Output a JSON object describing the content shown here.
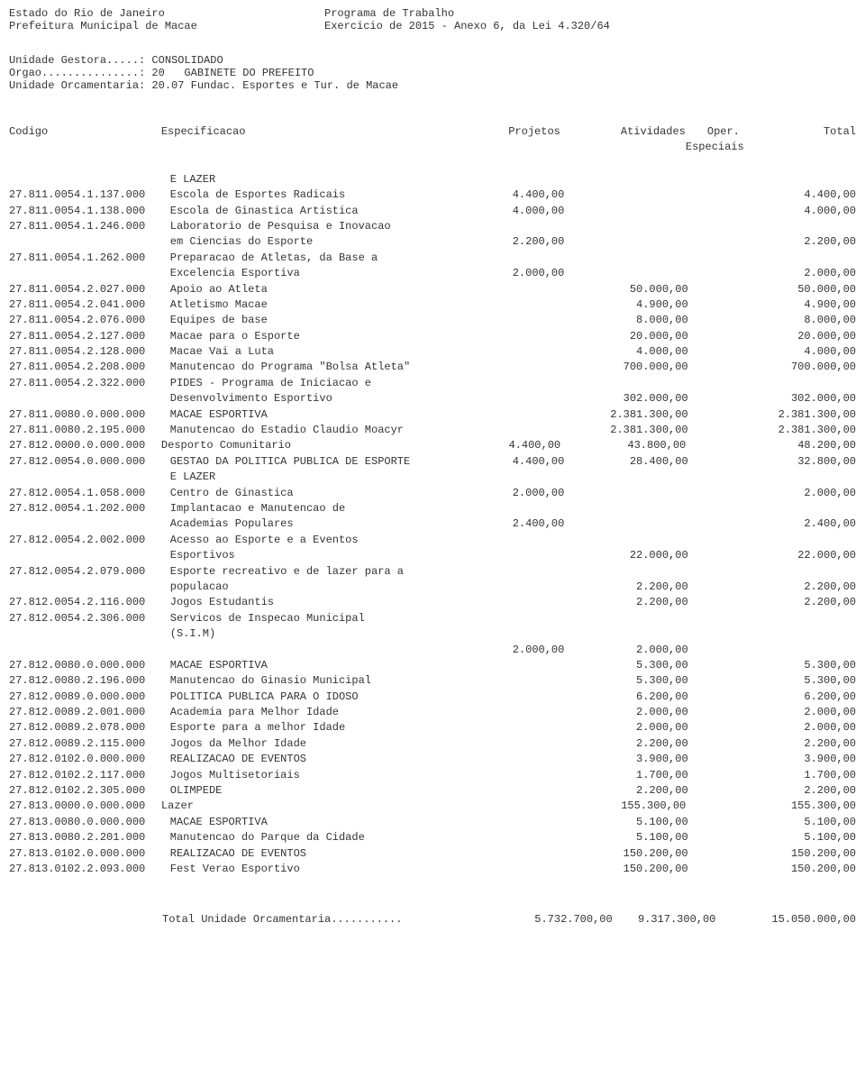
{
  "header": {
    "left1": "Estado do Rio de Janeiro",
    "right1": "Programa de Trabalho",
    "left2": "Prefeitura Municipal de Macae",
    "right2": "Exercicio de 2015 - Anexo 6, da Lei 4.320/64"
  },
  "meta": {
    "l1": "Unidade Gestora.....: CONSOLIDADO",
    "l2": "Orgao...............: 20   GABINETE DO PREFEITO",
    "l3": "Unidade Orcamentaria: 20.07 Fundac. Esportes e Tur. de Macae"
  },
  "colHeaders": {
    "code": "Codigo",
    "desc": "Especificacao",
    "proj": "Projetos",
    "act": "Atividades",
    "oper": "Oper. Especiais",
    "total": "Total"
  },
  "rows": [
    {
      "code": "",
      "desc": "E LAZER",
      "indent": 1
    },
    {
      "code": "27.811.0054.1.137.000",
      "desc": "Escola de Esportes Radicais",
      "indent": 1,
      "proj": "4.400,00",
      "total": "4.400,00"
    },
    {
      "code": "27.811.0054.1.138.000",
      "desc": "Escola de Ginastica Artistica",
      "indent": 1,
      "proj": "4.000,00",
      "total": "4.000,00"
    },
    {
      "code": "27.811.0054.1.246.000",
      "desc": "Laboratorio de Pesquisa e Inovacao",
      "indent": 1
    },
    {
      "code": "",
      "desc": "em Ciencias do Esporte",
      "indent": 1,
      "proj": "2.200,00",
      "total": "2.200,00"
    },
    {
      "code": "27.811.0054.1.262.000",
      "desc": "Preparacao de Atletas, da Base a",
      "indent": 1
    },
    {
      "code": "",
      "desc": "Excelencia Esportiva",
      "indent": 1,
      "proj": "2.000,00",
      "total": "2.000,00"
    },
    {
      "code": "27.811.0054.2.027.000",
      "desc": "Apoio ao Atleta",
      "indent": 1,
      "act": "50.000,00",
      "total": "50.000,00"
    },
    {
      "code": "27.811.0054.2.041.000",
      "desc": "Atletismo Macae",
      "indent": 1,
      "act": "4.900,00",
      "total": "4.900,00"
    },
    {
      "code": "27.811.0054.2.076.000",
      "desc": "Equipes de base",
      "indent": 1,
      "act": "8.000,00",
      "total": "8.000,00"
    },
    {
      "code": "27.811.0054.2.127.000",
      "desc": "Macae para o Esporte",
      "indent": 1,
      "act": "20.000,00",
      "total": "20.000,00"
    },
    {
      "code": "27.811.0054.2.128.000",
      "desc": "Macae Vai a Luta",
      "indent": 1,
      "act": "4.000,00",
      "total": "4.000,00"
    },
    {
      "code": "27.811.0054.2.208.000",
      "desc": "Manutencao do Programa \"Bolsa Atleta\"",
      "indent": 1,
      "act": "700.000,00",
      "total": "700.000,00"
    },
    {
      "code": "27.811.0054.2.322.000",
      "desc": "PIDES - Programa de Iniciacao e",
      "indent": 1
    },
    {
      "code": "",
      "desc": "Desenvolvimento Esportivo",
      "indent": 1,
      "act": "302.000,00",
      "total": "302.000,00"
    },
    {
      "code": "27.811.0080.0.000.000",
      "desc": "MACAE ESPORTIVA",
      "indent": 1,
      "act": "2.381.300,00",
      "total": "2.381.300,00"
    },
    {
      "code": "27.811.0080.2.195.000",
      "desc": "Manutencao do Estadio Claudio Moacyr",
      "indent": 1,
      "act": "2.381.300,00",
      "total": "2.381.300,00"
    },
    {
      "code": "27.812.0000.0.000.000",
      "desc": "Desporto Comunitario",
      "indent": 0,
      "proj": "4.400,00",
      "act": "43.800,00",
      "total": "48.200,00"
    },
    {
      "code": "27.812.0054.0.000.000",
      "desc": "GESTAO  DA POLITICA PUBLICA DE ESPORTE",
      "indent": 1,
      "proj": "4.400,00",
      "act": "28.400,00",
      "total": "32.800,00"
    },
    {
      "code": "",
      "desc": "E LAZER",
      "indent": 1
    },
    {
      "code": "27.812.0054.1.058.000",
      "desc": "Centro de Ginastica",
      "indent": 1,
      "proj": "2.000,00",
      "total": "2.000,00"
    },
    {
      "code": "27.812.0054.1.202.000",
      "desc": "Implantacao e Manutencao de",
      "indent": 1
    },
    {
      "code": "",
      "desc": "Academias Populares",
      "indent": 1,
      "proj": "2.400,00",
      "total": "2.400,00"
    },
    {
      "code": "27.812.0054.2.002.000",
      "desc": "Acesso ao Esporte e a Eventos",
      "indent": 1
    },
    {
      "code": "",
      "desc": "Esportivos",
      "indent": 1,
      "act": "22.000,00",
      "total": "22.000,00"
    },
    {
      "code": "27.812.0054.2.079.000",
      "desc": "Esporte recreativo e de lazer para a",
      "indent": 1
    },
    {
      "code": "",
      "desc": "populacao",
      "indent": 1,
      "act": "2.200,00",
      "total": "2.200,00"
    },
    {
      "code": "27.812.0054.2.116.000",
      "desc": "Jogos Estudantis",
      "indent": 1,
      "act": "2.200,00",
      "total": "2.200,00"
    },
    {
      "code": "27.812.0054.2.306.000",
      "desc": "Servicos de Inspecao Municipal",
      "indent": 1
    },
    {
      "code": "",
      "desc": "(S.I.M)",
      "indent": 1
    },
    {
      "code": "",
      "desc": "",
      "indent": 1,
      "proj": "2.000,00",
      "act": "2.000,00"
    },
    {
      "code": "27.812.0080.0.000.000",
      "desc": "MACAE ESPORTIVA",
      "indent": 1,
      "act": "5.300,00",
      "total": "5.300,00"
    },
    {
      "code": "27.812.0080.2.196.000",
      "desc": "Manutencao do Ginasio Municipal",
      "indent": 1,
      "act": "5.300,00",
      "total": "5.300,00"
    },
    {
      "code": "27.812.0089.0.000.000",
      "desc": "POLITICA PUBLICA PARA O IDOSO",
      "indent": 1,
      "act": "6.200,00",
      "total": "6.200,00"
    },
    {
      "code": "27.812.0089.2.001.000",
      "desc": "Academia para Melhor Idade",
      "indent": 1,
      "act": "2.000,00",
      "total": "2.000,00"
    },
    {
      "code": "27.812.0089.2.078.000",
      "desc": "Esporte para a melhor Idade",
      "indent": 1,
      "act": "2.000,00",
      "total": "2.000,00"
    },
    {
      "code": "27.812.0089.2.115.000",
      "desc": "Jogos da Melhor Idade",
      "indent": 1,
      "act": "2.200,00",
      "total": "2.200,00"
    },
    {
      "code": "27.812.0102.0.000.000",
      "desc": "REALIZACAO DE EVENTOS",
      "indent": 1,
      "act": "3.900,00",
      "total": "3.900,00"
    },
    {
      "code": "27.812.0102.2.117.000",
      "desc": "Jogos Multisetoriais",
      "indent": 1,
      "act": "1.700,00",
      "total": "1.700,00"
    },
    {
      "code": "27.812.0102.2.305.000",
      "desc": "OLIMPEDE",
      "indent": 1,
      "act": "2.200,00",
      "total": "2.200,00"
    },
    {
      "code": "27.813.0000.0.000.000",
      "desc": "Lazer",
      "indent": 0,
      "act": "155.300,00",
      "total": "155.300,00"
    },
    {
      "code": "27.813.0080.0.000.000",
      "desc": "MACAE ESPORTIVA",
      "indent": 1,
      "act": "5.100,00",
      "total": "5.100,00"
    },
    {
      "code": "27.813.0080.2.201.000",
      "desc": "Manutencao do Parque da Cidade",
      "indent": 1,
      "act": "5.100,00",
      "total": "5.100,00"
    },
    {
      "code": "27.813.0102.0.000.000",
      "desc": "REALIZACAO DE EVENTOS",
      "indent": 1,
      "act": "150.200,00",
      "total": "150.200,00"
    },
    {
      "code": "27.813.0102.2.093.000",
      "desc": "Fest Verao Esportivo",
      "indent": 1,
      "act": "150.200,00",
      "total": "150.200,00"
    }
  ],
  "footer": {
    "label": "Total Unidade Orcamentaria...........",
    "proj": "5.732.700,00",
    "act": "9.317.300,00",
    "total": "15.050.000,00"
  }
}
